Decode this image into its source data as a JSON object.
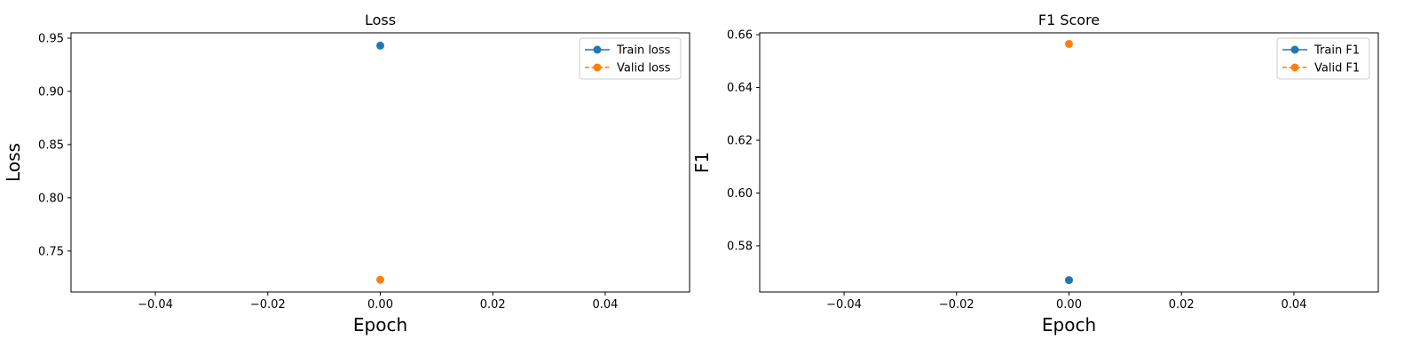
{
  "chart_data": [
    {
      "type": "line",
      "title": "Loss",
      "xlabel": "Epoch",
      "ylabel": "Loss",
      "xlim": [
        -0.055,
        0.055
      ],
      "ylim": [
        0.7115,
        0.955
      ],
      "xticks": [
        -0.04,
        -0.02,
        0.0,
        0.02,
        0.04
      ],
      "xtick_labels": [
        "−0.04",
        "−0.02",
        "0.00",
        "0.02",
        "0.04"
      ],
      "yticks": [
        0.75,
        0.8,
        0.85,
        0.9,
        0.95
      ],
      "ytick_labels": [
        "0.75",
        "0.80",
        "0.85",
        "0.90",
        "0.95"
      ],
      "grid": false,
      "legend_position": "top-right",
      "series": [
        {
          "name": "Train loss",
          "x": [
            0
          ],
          "y": [
            0.943
          ],
          "color": "#1f77b4",
          "linestyle": "solid",
          "marker": "circle"
        },
        {
          "name": "Valid loss",
          "x": [
            0
          ],
          "y": [
            0.723
          ],
          "color": "#ff7f0e",
          "linestyle": "dashed",
          "marker": "circle"
        }
      ]
    },
    {
      "type": "line",
      "title": "F1 Score",
      "xlabel": "Epoch",
      "ylabel": "F1",
      "xlim": [
        -0.055,
        0.055
      ],
      "ylim": [
        0.5625,
        0.6607
      ],
      "xticks": [
        -0.04,
        -0.02,
        0.0,
        0.02,
        0.04
      ],
      "xtick_labels": [
        "−0.04",
        "−0.02",
        "0.00",
        "0.02",
        "0.04"
      ],
      "yticks": [
        0.58,
        0.6,
        0.62,
        0.64,
        0.66
      ],
      "ytick_labels": [
        "0.58",
        "0.60",
        "0.62",
        "0.64",
        "0.66"
      ],
      "grid": false,
      "legend_position": "top-right",
      "series": [
        {
          "name": "Train F1",
          "x": [
            0
          ],
          "y": [
            0.567
          ],
          "color": "#1f77b4",
          "linestyle": "solid",
          "marker": "circle"
        },
        {
          "name": "Valid F1",
          "x": [
            0
          ],
          "y": [
            0.6565
          ],
          "color": "#ff7f0e",
          "linestyle": "dashed",
          "marker": "circle"
        }
      ]
    }
  ]
}
